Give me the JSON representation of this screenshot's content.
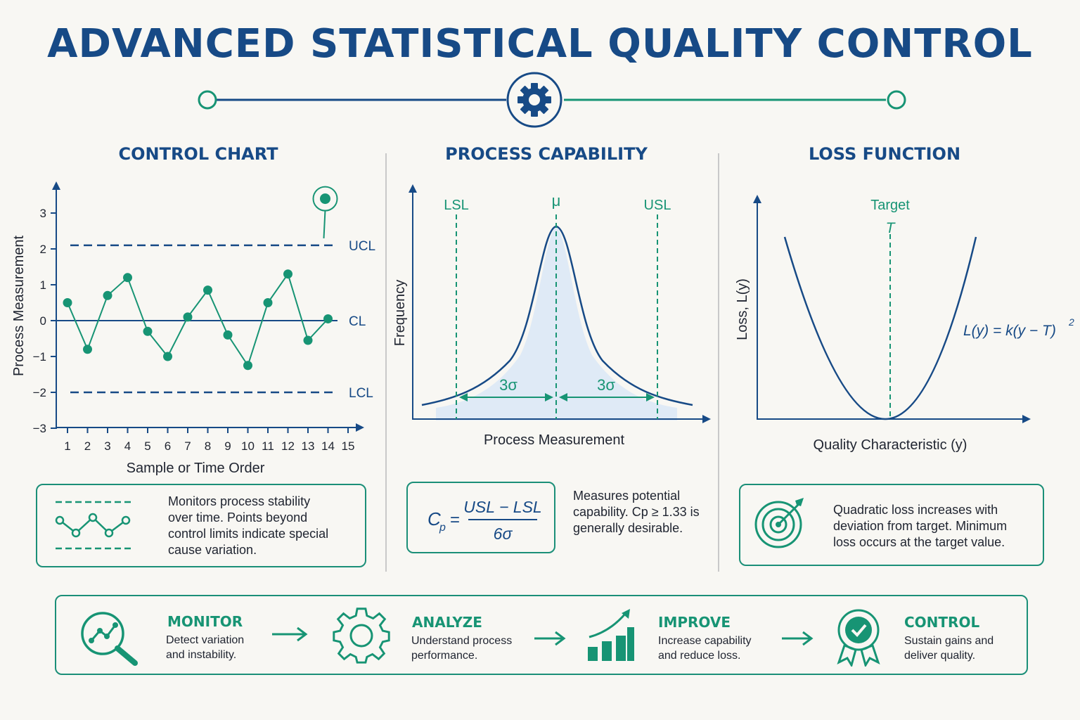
{
  "title": "ADVANCED STATISTICAL QUALITY CONTROL",
  "colors": {
    "navy": "#174a86",
    "teal": "#179474",
    "fill": "#dfeaf6"
  },
  "control_chart": {
    "heading": "CONTROL CHART",
    "ylabel": "Process Measurement",
    "xlabel": "Sample or Time Order",
    "y_ticks": [
      "3",
      "2",
      "1",
      "0",
      "−1",
      "−2",
      "−3"
    ],
    "x_ticks": [
      "1",
      "2",
      "3",
      "4",
      "5",
      "6",
      "7",
      "8",
      "9",
      "10",
      "11",
      "12",
      "13",
      "14",
      "15"
    ],
    "ucl_label": "UCL",
    "cl_label": "CL",
    "lcl_label": "LCL",
    "note": "Monitors process stability over time. Points beyond control limits indicate special cause variation."
  },
  "capability": {
    "heading": "PROCESS CAPABILITY",
    "ylabel": "Frequency",
    "xlabel": "Process Measurement",
    "lsl": "LSL",
    "mu": "μ",
    "usl": "USL",
    "sigma_left": "3σ",
    "sigma_right": "3σ",
    "formula_lhs": "C",
    "formula_sub": "p",
    "formula_eq": "=",
    "formula_num": "USL − LSL",
    "formula_den": "6σ",
    "note": "Measures potential capability. Cp ≥ 1.33 is generally desirable."
  },
  "loss": {
    "heading": "LOSS FUNCTION",
    "ylabel": "Loss, L(y)",
    "xlabel": "Quality Characteristic (y)",
    "target": "Target",
    "target_symbol": "T",
    "formula": "L(y) = k(y − T)",
    "formula_exp": "2",
    "note": "Quadratic loss increases with deviation from target. Minimum loss occurs at the target value."
  },
  "flow": [
    {
      "head": "MONITOR",
      "desc": "Detect variation and instability.",
      "icon": "magnifier-chart-icon"
    },
    {
      "head": "ANALYZE",
      "desc": "Understand process performance.",
      "icon": "gear-icon"
    },
    {
      "head": "IMPROVE",
      "desc": "Increase capability and reduce loss.",
      "icon": "bar-growth-icon"
    },
    {
      "head": "CONTROL",
      "desc": "Sustain gains and deliver quality.",
      "icon": "award-check-icon"
    }
  ],
  "chart_data": {
    "type": "line",
    "x": [
      1,
      2,
      3,
      4,
      5,
      6,
      7,
      8,
      9,
      10,
      11,
      12,
      13,
      14
    ],
    "values": [
      0.5,
      -0.8,
      0.7,
      1.2,
      -0.3,
      -1.0,
      0.1,
      0.85,
      -0.4,
      -1.25,
      0.5,
      1.3,
      -0.55,
      0.05
    ],
    "out_of_control_point": {
      "x": 14,
      "y": 3.4
    },
    "ucl": 2.1,
    "cl": 0,
    "lcl": -2.0,
    "xlabel": "Sample or Time Order",
    "ylabel": "Process Measurement",
    "ylim": [
      -3,
      3
    ],
    "xlim": [
      1,
      15
    ]
  }
}
